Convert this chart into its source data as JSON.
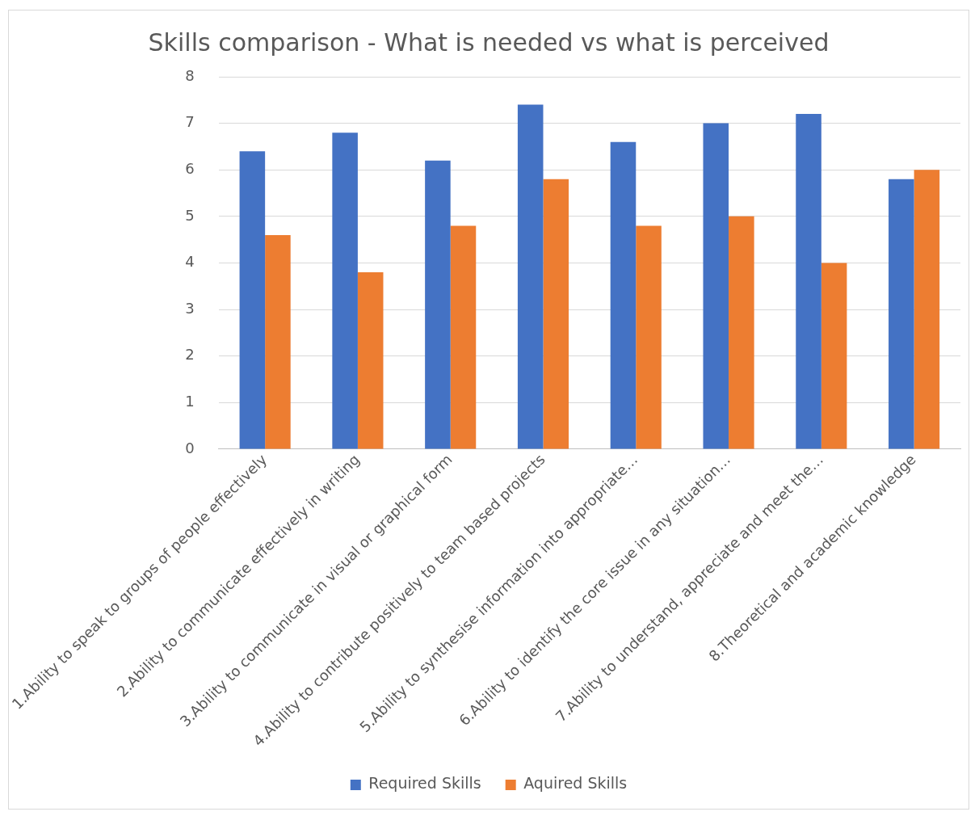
{
  "chart_data": {
    "type": "bar",
    "title": "Skills comparison - What is needed vs what is perceived",
    "categories": [
      "1.Ability to speak to groups of people effectively",
      "2.Ability to communicate effectively in writing",
      "3.Ability to communicate in visual or graphical form",
      "4.Ability to contribute positively to team based projects",
      "5.Ability to synthesise information into appropriate…",
      "6.Ability to identify the core issue in any situation…",
      "7.Ability to understand, appreciate and meet the…",
      "8.Theoretical and academic knowledge"
    ],
    "series": [
      {
        "name": "Required Skills",
        "color": "#4472c4",
        "values": [
          6.4,
          6.8,
          6.2,
          7.4,
          6.6,
          7.0,
          7.2,
          5.8
        ]
      },
      {
        "name": "Aquired Skills",
        "color": "#ed7d31",
        "values": [
          4.6,
          3.8,
          4.8,
          5.8,
          4.8,
          5.0,
          4.0,
          6.0
        ]
      }
    ],
    "ylim": [
      0,
      8
    ],
    "yticks": [
      0,
      1,
      2,
      3,
      4,
      5,
      6,
      7,
      8
    ],
    "grid": "y",
    "legend": "bottom"
  }
}
